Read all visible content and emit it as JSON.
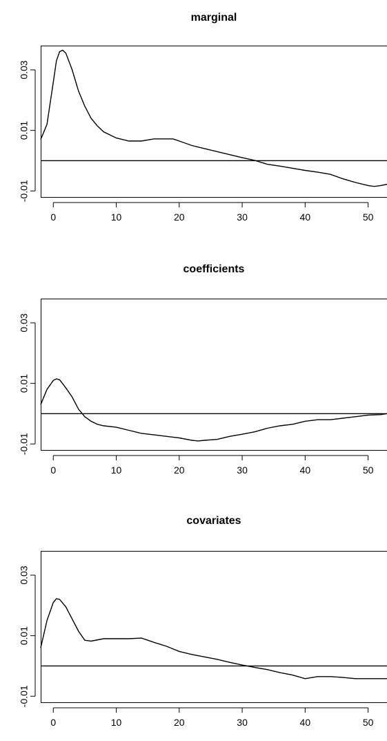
{
  "chart_data": [
    {
      "type": "line",
      "title": "marginal",
      "xlabel": "",
      "ylabel": "",
      "xlim": [
        -2,
        53
      ],
      "ylim": [
        -0.012,
        0.038
      ],
      "x_ticks": [
        0,
        10,
        20,
        30,
        40,
        50
      ],
      "x_tick_labels": [
        "0",
        "10",
        "20",
        "30",
        "40",
        "50"
      ],
      "y_ticks": [
        -0.01,
        0.01,
        0.03
      ],
      "y_tick_labels": [
        "-0.01",
        "0.01",
        "0.03"
      ],
      "hline": 0,
      "grid": false,
      "x": [
        -2,
        -1,
        0,
        0.5,
        1,
        1.5,
        2,
        3,
        4,
        5,
        6,
        7,
        8,
        10,
        12,
        14,
        16,
        18,
        19,
        20,
        22,
        24,
        26,
        28,
        30,
        32,
        34,
        36,
        38,
        40,
        42,
        44,
        46,
        48,
        50,
        51,
        52,
        53
      ],
      "values": [
        0.007,
        0.012,
        0.026,
        0.033,
        0.036,
        0.0365,
        0.0355,
        0.03,
        0.023,
        0.018,
        0.014,
        0.0115,
        0.0095,
        0.0075,
        0.0065,
        0.0065,
        0.0072,
        0.0072,
        0.0072,
        0.0065,
        0.005,
        0.004,
        0.003,
        0.002,
        0.001,
        0.0001,
        -0.0012,
        -0.0018,
        -0.0025,
        -0.0032,
        -0.0038,
        -0.0045,
        -0.006,
        -0.0072,
        -0.0082,
        -0.0085,
        -0.0082,
        -0.0078
      ]
    },
    {
      "type": "line",
      "title": "coefficients",
      "xlabel": "",
      "ylabel": "",
      "xlim": [
        -2,
        53
      ],
      "ylim": [
        -0.012,
        0.038
      ],
      "x_ticks": [
        0,
        10,
        20,
        30,
        40,
        50
      ],
      "x_tick_labels": [
        "0",
        "10",
        "20",
        "30",
        "40",
        "50"
      ],
      "y_ticks": [
        -0.01,
        0.01,
        0.03
      ],
      "y_tick_labels": [
        "-0.01",
        "0.01",
        "0.03"
      ],
      "hline": 0,
      "grid": false,
      "x": [
        -2,
        -1,
        0,
        0.5,
        1,
        2,
        3,
        4,
        5,
        6,
        7,
        8,
        10,
        12,
        14,
        16,
        18,
        20,
        22,
        23,
        24,
        26,
        28,
        30,
        32,
        34,
        36,
        38,
        40,
        42,
        44,
        46,
        48,
        50,
        52,
        53
      ],
      "values": [
        0.003,
        0.008,
        0.011,
        0.0115,
        0.0112,
        0.0085,
        0.0055,
        0.0015,
        -0.001,
        -0.0025,
        -0.0035,
        -0.004,
        -0.0045,
        -0.0055,
        -0.0065,
        -0.007,
        -0.0075,
        -0.008,
        -0.0088,
        -0.009,
        -0.0088,
        -0.0085,
        -0.0075,
        -0.0068,
        -0.006,
        -0.0048,
        -0.004,
        -0.0035,
        -0.0025,
        -0.002,
        -0.002,
        -0.0015,
        -0.001,
        -0.0005,
        -0.0003,
        0.0
      ]
    },
    {
      "type": "line",
      "title": "covariates",
      "xlabel": "",
      "ylabel": "",
      "xlim": [
        -2,
        53
      ],
      "ylim": [
        -0.012,
        0.038
      ],
      "x_ticks": [
        0,
        10,
        20,
        30,
        40,
        50
      ],
      "x_tick_labels": [
        "0",
        "10",
        "20",
        "30",
        "40",
        "50"
      ],
      "y_ticks": [
        -0.01,
        0.01,
        0.03
      ],
      "y_tick_labels": [
        "-0.01",
        "0.01",
        "0.03"
      ],
      "hline": 0,
      "grid": false,
      "x": [
        -2,
        -1,
        0,
        0.5,
        1,
        2,
        3,
        4,
        5,
        6,
        8,
        10,
        12,
        14,
        16,
        18,
        20,
        22,
        24,
        26,
        28,
        30,
        32,
        34,
        36,
        38,
        40,
        42,
        44,
        46,
        48,
        50,
        52,
        53
      ],
      "values": [
        0.006,
        0.015,
        0.021,
        0.0222,
        0.022,
        0.0195,
        0.0155,
        0.0115,
        0.0085,
        0.0082,
        0.009,
        0.009,
        0.009,
        0.0092,
        0.0078,
        0.0065,
        0.0048,
        0.0038,
        0.003,
        0.0022,
        0.0012,
        0.0003,
        -0.0005,
        -0.0012,
        -0.0022,
        -0.003,
        -0.0042,
        -0.0035,
        -0.0035,
        -0.0038,
        -0.0042,
        -0.0042,
        -0.0042,
        -0.0042
      ]
    }
  ]
}
